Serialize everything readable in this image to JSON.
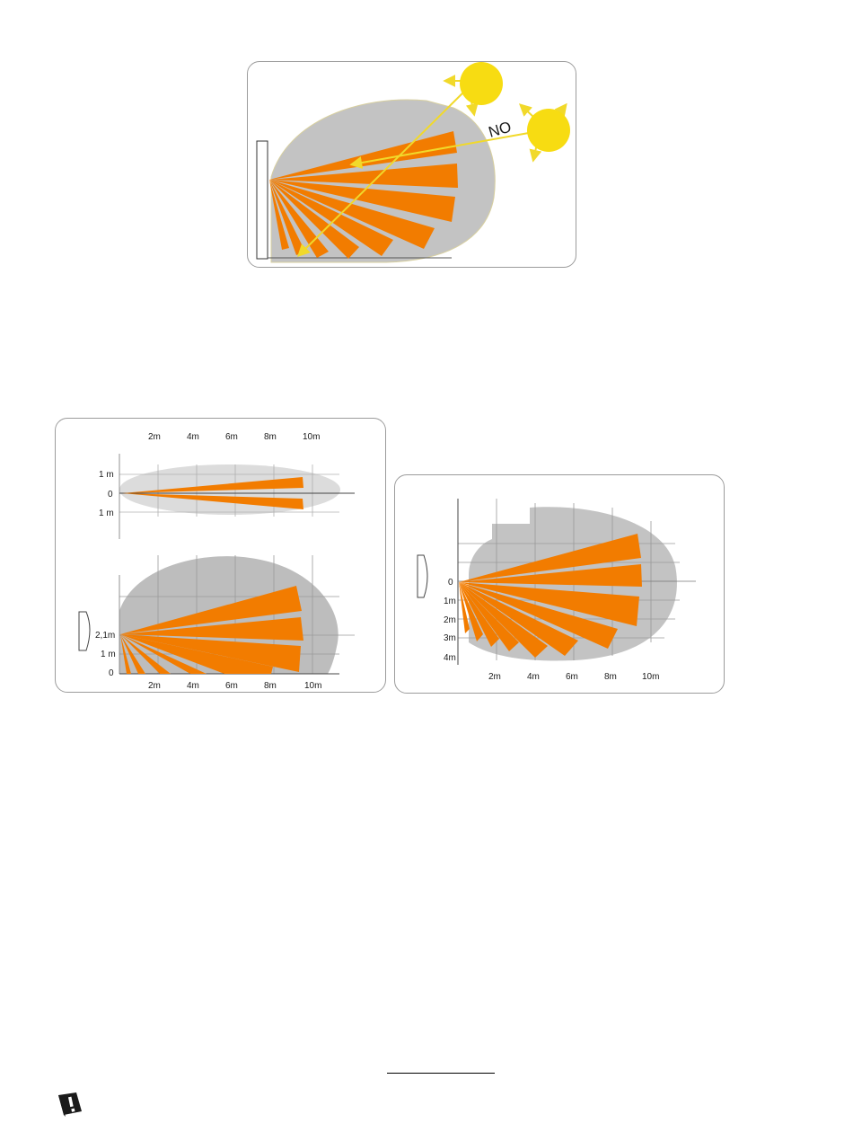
{
  "figure1": {
    "no_label": "NO",
    "colors": {
      "zone": "#c3c3c3",
      "beam": "#f27c00",
      "sun": "#f7dc12",
      "sun_ray": "#f1d92a"
    }
  },
  "figure2": {
    "top_view": {
      "x_ticks": [
        "2m",
        "4m",
        "6m",
        "8m",
        "10m"
      ],
      "y_ticks": [
        "1 m",
        "0",
        "1 m"
      ]
    },
    "side_view": {
      "x_ticks": [
        "2m",
        "4m",
        "6m",
        "8m",
        "10m"
      ],
      "y_ticks": [
        "2,1m",
        "1 m",
        "0"
      ]
    }
  },
  "figure3": {
    "x_ticks": [
      "2m",
      "4m",
      "6m",
      "8m",
      "10m"
    ],
    "y_ticks": [
      "0",
      "1m",
      "2m",
      "3m",
      "4m"
    ]
  },
  "footer": {
    "icon": "warning-book-icon"
  }
}
